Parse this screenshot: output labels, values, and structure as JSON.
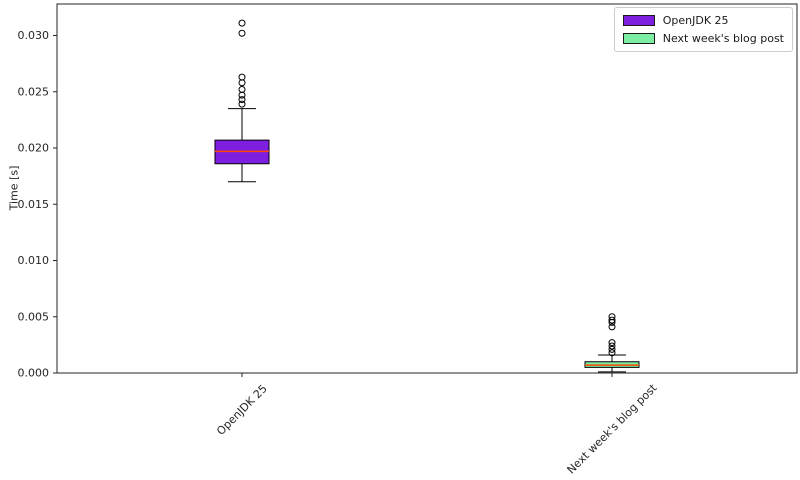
{
  "chart_data": {
    "type": "boxplot",
    "title": "",
    "xlabel": "",
    "ylabel": "Time [s]",
    "ylim": [
      0,
      0.0328
    ],
    "grid": false,
    "categories": [
      "OpenJDK 25",
      "Next week's blog post"
    ],
    "yticks": [
      {
        "value": 0.0,
        "label": "0.000"
      },
      {
        "value": 0.005,
        "label": "0.005"
      },
      {
        "value": 0.01,
        "label": "0.010"
      },
      {
        "value": 0.015,
        "label": "0.015"
      },
      {
        "value": 0.02,
        "label": "0.020"
      },
      {
        "value": 0.025,
        "label": "0.025"
      },
      {
        "value": 0.03,
        "label": "0.030"
      }
    ],
    "series": [
      {
        "name": "OpenJDK 25",
        "fill_color": "#7e1fe0",
        "whisker_low": 0.017,
        "q1": 0.0186,
        "median": 0.0197,
        "q3": 0.0207,
        "whisker_high": 0.0235,
        "outliers": [
          0.0239,
          0.0243,
          0.0247,
          0.0252,
          0.0258,
          0.0263,
          0.0302,
          0.0311
        ]
      },
      {
        "name": "Next week's blog post",
        "fill_color": "#7ceea4",
        "whisker_low": 0.0001,
        "q1": 0.0005,
        "median": 0.0007,
        "q3": 0.001,
        "whisker_high": 0.0016,
        "outliers": [
          0.0018,
          0.0021,
          0.0024,
          0.0027,
          0.0041,
          0.0045,
          0.0047,
          0.005
        ]
      }
    ],
    "median_color": "#ff4500",
    "edge_color": "#000000",
    "axis_color": "#262626",
    "legend": {
      "position": "upper right",
      "entries": [
        {
          "label": "OpenJDK 25",
          "color": "#7e1fe0"
        },
        {
          "label": "Next week's blog post",
          "color": "#7ceea4"
        }
      ]
    }
  }
}
